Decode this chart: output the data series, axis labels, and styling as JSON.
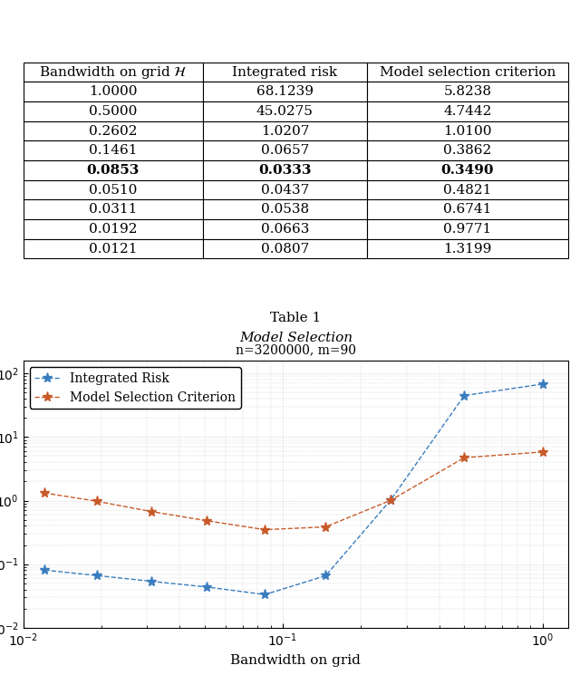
{
  "table_headers": [
    "Bandwidth on grid $\\mathcal{H}$",
    "Integrated risk",
    "Model selection criterion"
  ],
  "table_rows": [
    [
      "1.0000",
      "68.1239",
      "5.8238"
    ],
    [
      "0.5000",
      "45.0275",
      "4.7442"
    ],
    [
      "0.2602",
      "1.0207",
      "1.0100"
    ],
    [
      "0.1461",
      "0.0657",
      "0.3862"
    ],
    [
      "0.0853",
      "0.0333",
      "0.3490"
    ],
    [
      "0.0510",
      "0.0437",
      "0.4821"
    ],
    [
      "0.0311",
      "0.0538",
      "0.6741"
    ],
    [
      "0.0192",
      "0.0663",
      "0.9771"
    ],
    [
      "0.0121",
      "0.0807",
      "1.3199"
    ]
  ],
  "bold_row": 4,
  "table_caption_line1": "Table 1",
  "table_caption_line2": "Model Selection",
  "bandwidth": [
    1.0,
    0.5,
    0.2602,
    0.1461,
    0.0853,
    0.051,
    0.0311,
    0.0192,
    0.0121
  ],
  "integrated_risk": [
    68.1239,
    45.0275,
    1.0207,
    0.0657,
    0.0333,
    0.0437,
    0.0538,
    0.0663,
    0.0807
  ],
  "model_selection": [
    5.8238,
    4.7442,
    1.01,
    0.3862,
    0.349,
    0.4821,
    0.6741,
    0.9771,
    1.3199
  ],
  "plot_title": "n=3200000, m=90",
  "xlabel": "Bandwidth on grid",
  "ylabel": "",
  "color_risk": "#3a7dbf",
  "color_msc": "#c85a2a",
  "legend_entries": [
    "Integrated Risk",
    "Model Selection Criterion"
  ],
  "xlim_log": [
    -2,
    0.1
  ],
  "ylim_log": [
    -2,
    2.2
  ]
}
